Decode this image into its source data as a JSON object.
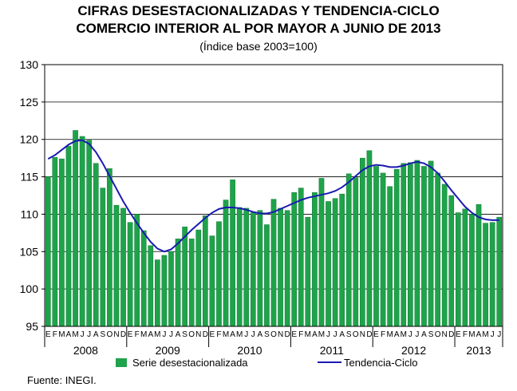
{
  "title_line1": "CIFRAS DESESTACIONALIZADAS Y TENDENCIA-CICLO",
  "title_line2": "COMERCIO INTERIOR AL POR MAYOR A JUNIO DE 2013",
  "subtitle": "(Índice base 2003=100)",
  "source": "Fuente: INEGI.",
  "colors": {
    "bar": "#1fa34a",
    "bar_edge": "#0d7a33",
    "line": "#1a1ab0",
    "grid": "#000000"
  },
  "chart_data": {
    "type": "bar",
    "ylim": [
      95,
      130
    ],
    "yticks": [
      95,
      100,
      105,
      110,
      115,
      120,
      125,
      130
    ],
    "month_labels": [
      "E",
      "F",
      "M",
      "A",
      "M",
      "J",
      "J",
      "A",
      "S",
      "O",
      "N",
      "D"
    ],
    "years": [
      "2008",
      "2009",
      "2010",
      "2011",
      "2012",
      "2013"
    ],
    "series": [
      {
        "name": "Serie desestacionalizada",
        "type": "bar",
        "values": [
          115.0,
          117.6,
          117.4,
          119.1,
          121.2,
          120.4,
          119.9,
          116.8,
          113.5,
          116.1,
          111.2,
          110.8,
          108.9,
          110.0,
          107.8,
          105.8,
          103.9,
          104.5,
          105.0,
          106.7,
          108.3,
          106.7,
          107.9,
          109.8,
          107.1,
          109.0,
          111.9,
          114.6,
          110.9,
          110.8,
          110.2,
          110.5,
          108.6,
          112.0,
          110.8,
          110.5,
          112.9,
          113.5,
          109.6,
          112.9,
          114.8,
          111.7,
          112.1,
          112.7,
          115.4,
          114.9,
          117.5,
          118.5,
          116.4,
          115.5,
          113.7,
          116.0,
          116.8,
          116.9,
          117.2,
          116.4,
          117.1,
          115.5,
          114.0,
          112.5,
          110.2,
          110.7,
          110.0,
          111.3,
          108.8,
          108.9,
          109.6
        ]
      },
      {
        "name": "Tendencia-Ciclo",
        "type": "line",
        "values": [
          117.4,
          117.9,
          118.6,
          119.3,
          119.8,
          119.9,
          119.4,
          118.3,
          116.8,
          115.1,
          113.4,
          111.7,
          110.2,
          108.8,
          107.5,
          106.3,
          105.4,
          105.0,
          105.3,
          106.1,
          107.0,
          107.9,
          108.7,
          109.5,
          110.2,
          110.7,
          110.9,
          110.9,
          110.8,
          110.6,
          110.3,
          110.1,
          110.1,
          110.3,
          110.7,
          111.1,
          111.5,
          111.9,
          112.2,
          112.4,
          112.6,
          112.8,
          113.1,
          113.6,
          114.3,
          115.1,
          115.9,
          116.4,
          116.6,
          116.5,
          116.3,
          116.3,
          116.5,
          116.8,
          117.0,
          116.8,
          116.3,
          115.5,
          114.4,
          113.2,
          112.1,
          111.0,
          110.2,
          109.6,
          109.3,
          109.2,
          109.2
        ]
      }
    ],
    "legend_position": "bottom"
  }
}
